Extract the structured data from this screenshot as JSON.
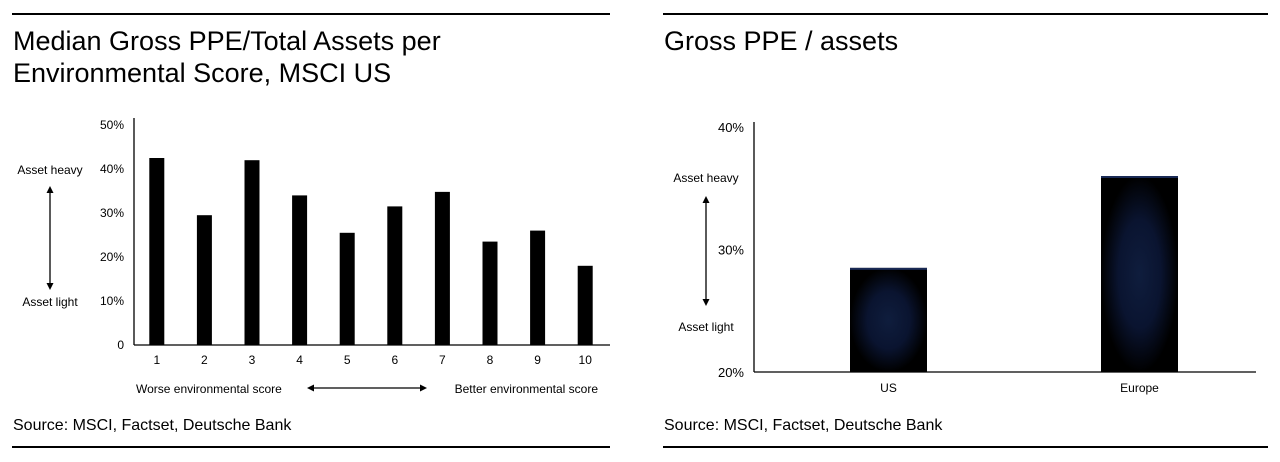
{
  "chart_data": [
    {
      "type": "bar",
      "title": "Median Gross PPE/Total Assets per Environmental Score, MSCI US",
      "title_lines": [
        "Median Gross PPE/Total Assets per",
        "Environmental Score, MSCI US"
      ],
      "categories": [
        "1",
        "2",
        "3",
        "4",
        "5",
        "6",
        "7",
        "8",
        "9",
        "10"
      ],
      "values": [
        42.5,
        29.5,
        42.0,
        34.0,
        25.5,
        31.5,
        34.8,
        23.5,
        26.0,
        18.0
      ],
      "yticks": [
        "0",
        "10%",
        "20%",
        "30%",
        "40%",
        "50%"
      ],
      "ylim": [
        0,
        50
      ],
      "y_annotation_top": "Asset heavy",
      "y_annotation_bottom": "Asset light",
      "x_annotation_left": "Worse environmental score",
      "x_annotation_right": "Better environmental score",
      "source": "Source: MSCI, Factset, Deutsche Bank"
    },
    {
      "type": "bar",
      "title": "Gross PPE / assets",
      "categories": [
        "US",
        "Europe"
      ],
      "values": [
        28.5,
        36.0
      ],
      "yticks": [
        "20%",
        "30%",
        "40%"
      ],
      "ylim": [
        20,
        40
      ],
      "y_annotation_top": "Asset heavy",
      "y_annotation_bottom": "Asset light",
      "source": "Source: MSCI, Factset, Deutsche Bank"
    }
  ]
}
